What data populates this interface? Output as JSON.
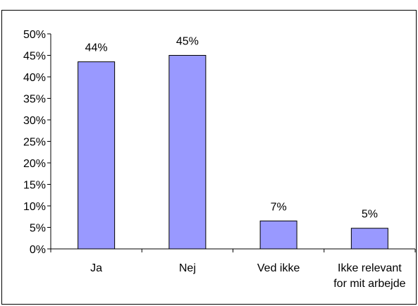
{
  "colors": {
    "bar_fill": "#9999ff",
    "bar_stroke": "#000000",
    "background": "#ffffff"
  },
  "chart_data": {
    "type": "bar",
    "title": "",
    "xlabel": "",
    "ylabel": "",
    "categories": [
      [
        "Ja"
      ],
      [
        "Nej"
      ],
      [
        "Ved ikke"
      ],
      [
        "Ikke relevant",
        "for mit arbejde"
      ]
    ],
    "values": [
      0.435,
      0.45,
      0.065,
      0.048
    ],
    "data_labels": [
      "44%",
      "45%",
      "7%",
      "5%"
    ],
    "ylim": [
      0,
      0.5
    ],
    "y_ticks": [
      0,
      0.05,
      0.1,
      0.15,
      0.2,
      0.25,
      0.3,
      0.35,
      0.4,
      0.45,
      0.5
    ],
    "y_tick_labels": [
      "0%",
      "5%",
      "10%",
      "15%",
      "20%",
      "25%",
      "30%",
      "35%",
      "40%",
      "45%",
      "50%"
    ],
    "grid": false,
    "legend": "none"
  }
}
